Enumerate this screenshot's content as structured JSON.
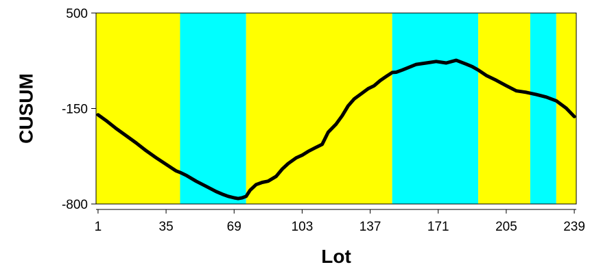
{
  "chart_data": {
    "type": "line",
    "title": "",
    "xlabel": "Lot",
    "ylabel": "CUSUM",
    "xlim": [
      0,
      240
    ],
    "ylim": [
      -800,
      500
    ],
    "x_ticks": [
      1,
      35,
      69,
      103,
      137,
      171,
      205,
      239
    ],
    "y_ticks": [
      -800,
      -150,
      500
    ],
    "grid": false,
    "legend": "none",
    "colors": {
      "line": "#000000",
      "band_yellow": "#ffff00",
      "band_cyan": "#00ffff",
      "background": "#ffffff"
    },
    "bands": [
      {
        "from": 0,
        "to": 42,
        "color": "yellow"
      },
      {
        "from": 42,
        "to": 75,
        "color": "cyan"
      },
      {
        "from": 75,
        "to": 148,
        "color": "yellow"
      },
      {
        "from": 148,
        "to": 191,
        "color": "cyan"
      },
      {
        "from": 191,
        "to": 217,
        "color": "yellow"
      },
      {
        "from": 217,
        "to": 230,
        "color": "cyan"
      },
      {
        "from": 230,
        "to": 240,
        "color": "yellow"
      }
    ],
    "series": [
      {
        "x": [
          1,
          5,
          10,
          15,
          20,
          25,
          30,
          35,
          40,
          42,
          45,
          50,
          55,
          60,
          63,
          66,
          69,
          71,
          73,
          75,
          77,
          80,
          83,
          86,
          90,
          93,
          96,
          100,
          103,
          106,
          110,
          113,
          116,
          120,
          123,
          126,
          129,
          133,
          136,
          139,
          142,
          145,
          148,
          150,
          153,
          156,
          160,
          165,
          170,
          175,
          180,
          185,
          188,
          191,
          195,
          200,
          205,
          210,
          215,
          220,
          225,
          230,
          235,
          239
        ],
        "y": [
          -193,
          -232,
          -286,
          -335,
          -384,
          -437,
          -485,
          -530,
          -575,
          -585,
          -605,
          -645,
          -680,
          -715,
          -733,
          -748,
          -758,
          -763,
          -758,
          -748,
          -706,
          -668,
          -653,
          -645,
          -612,
          -563,
          -525,
          -486,
          -468,
          -442,
          -414,
          -394,
          -312,
          -256,
          -200,
          -132,
          -85,
          -45,
          -15,
          5,
          40,
          68,
          95,
          97,
          112,
          128,
          150,
          160,
          170,
          160,
          178,
          152,
          135,
          112,
          75,
          42,
          5,
          -30,
          -40,
          -55,
          -72,
          -98,
          -148,
          -205
        ]
      }
    ]
  }
}
